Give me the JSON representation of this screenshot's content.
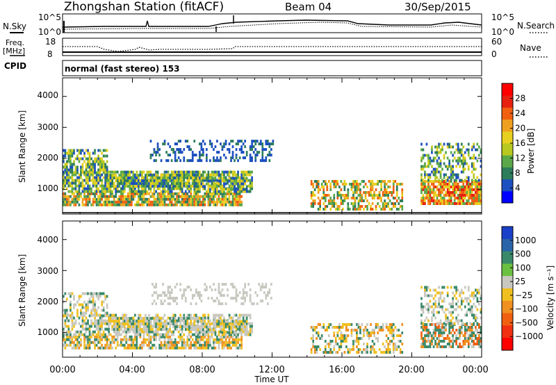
{
  "header": {
    "station": "Zhongshan Station (fitACF)",
    "beam": "Beam 04",
    "date": "30/Sep/2015"
  },
  "noise_panel": {
    "left_label": "N.Sky",
    "right_label": "N.Search",
    "left_ticks": [
      "10^5",
      "10^0"
    ],
    "right_ticks": [
      "10^5",
      "10^0"
    ]
  },
  "freq_panel": {
    "left_label_line1": "Freq.",
    "left_label_line2": "[MHz]",
    "right_label": "Nave",
    "left_ticks": [
      "18",
      "8"
    ],
    "right_ticks": [
      "60",
      "0"
    ]
  },
  "cpid": {
    "label": "CPID",
    "value": "normal (fast stereo) 153"
  },
  "x_axis": {
    "title": "Time UT",
    "ticks": [
      "00:00",
      "04:00",
      "08:00",
      "12:00",
      "16:00",
      "20:00",
      "00:00"
    ]
  },
  "chart_data": [
    {
      "type": "heatmap",
      "panel": "power",
      "ylabel": "Slant Range [km]",
      "yticks": [
        1000,
        2000,
        3000,
        4000
      ],
      "ylim": [
        200,
        4600
      ],
      "xlim_hours": [
        0,
        24
      ],
      "colorbar": {
        "title": "Power [dB]",
        "ticks": [
          "4",
          "8",
          "12",
          "16",
          "20",
          "24",
          "28"
        ],
        "colors": [
          "#0000ff",
          "#1c4fbf",
          "#2e7d5a",
          "#5aa84a",
          "#b8c820",
          "#e8d020",
          "#f0a020",
          "#f06010",
          "#e82010",
          "#ff0000"
        ]
      }
    },
    {
      "type": "heatmap",
      "panel": "velocity",
      "ylabel": "Slant Range [km]",
      "yticks": [
        1000,
        2000,
        3000,
        4000
      ],
      "ylim": [
        200,
        4600
      ],
      "xlim_hours": [
        0,
        24
      ],
      "colorbar": {
        "title": "Velocity [m s⁻¹]",
        "ticks": [
          "1000",
          "500",
          "100",
          "25",
          "−25",
          "−100",
          "−500",
          "−1000"
        ],
        "colors": [
          "#1a3fc8",
          "#2a64a8",
          "#3a8a6a",
          "#6ac040",
          "#c8c8c0",
          "#f0c020",
          "#f09020",
          "#f06010",
          "#f03010",
          "#ff0000"
        ]
      }
    }
  ]
}
